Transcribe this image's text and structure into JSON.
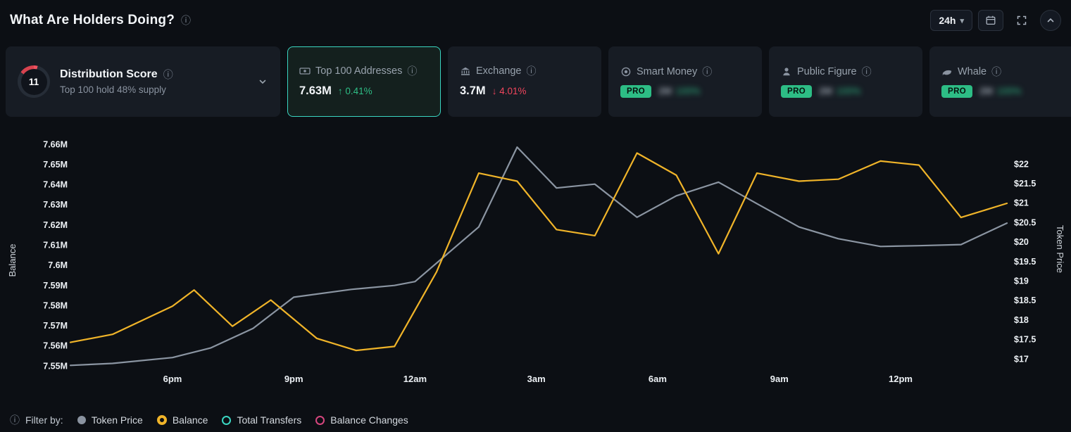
{
  "icons": {
    "info": "ⓘ",
    "caret_down": "▾",
    "up_arrow": "↑",
    "down_arrow": "↓"
  },
  "header": {
    "title": "What Are Holders Doing?",
    "timeframe_label": "24h"
  },
  "cards": [
    {
      "score": "11",
      "title": "Distribution Score",
      "subtitle": "Top 100 hold 48% supply"
    },
    {
      "title": "Top 100 Addresses",
      "value": "7.63M",
      "change": "0.41%",
      "direction": "up",
      "selected": true
    },
    {
      "title": "Exchange",
      "value": "3.7M",
      "change": "4.01%",
      "direction": "down"
    },
    {
      "title": "Smart Money",
      "badge": "PRO",
      "obscured_value": "2M",
      "obscured_change": "100%"
    },
    {
      "title": "Public Figure",
      "badge": "PRO",
      "obscured_value": "2M",
      "obscured_change": "100%"
    },
    {
      "title": "Whale",
      "badge": "PRO",
      "obscured_value": "2M",
      "obscured_change": "100%"
    }
  ],
  "footer": {
    "filter_label": "Filter by:",
    "legend": [
      {
        "label": "Token Price",
        "marker": "solid",
        "color": "#8a93a0",
        "active": true
      },
      {
        "label": "Balance",
        "marker": "donut",
        "color": "#f0b429",
        "active": true
      },
      {
        "label": "Total Transfers",
        "marker": "ring",
        "color": "#3ad6c2",
        "active": false
      },
      {
        "label": "Balance Changes",
        "marker": "ring",
        "color": "#d6467e",
        "active": false
      }
    ]
  },
  "chart_data": {
    "type": "line",
    "title": "",
    "x_ticks": [
      {
        "label": "6pm",
        "pos": 0.109
      },
      {
        "label": "9pm",
        "pos": 0.2385
      },
      {
        "label": "12am",
        "pos": 0.368
      },
      {
        "label": "3am",
        "pos": 0.4975
      },
      {
        "label": "6am",
        "pos": 0.627
      },
      {
        "label": "9am",
        "pos": 0.757
      },
      {
        "label": "12pm",
        "pos": 0.8865
      }
    ],
    "left_axis": {
      "label": "Balance",
      "min": 7.55,
      "max": 7.66,
      "step": 0.01,
      "suffix": "M"
    },
    "right_axis": {
      "label": "Token Price",
      "min": 17,
      "max": 22,
      "step": 0.5,
      "prefix": "$"
    },
    "grid": false,
    "legend_position": "bottom",
    "series": [
      {
        "name": "Token Price",
        "axis": "right",
        "color": "#8b95a2",
        "points": [
          [
            0.0,
            16.85
          ],
          [
            0.045,
            16.9
          ],
          [
            0.109,
            17.05
          ],
          [
            0.15,
            17.3
          ],
          [
            0.195,
            17.8
          ],
          [
            0.2385,
            18.6
          ],
          [
            0.3,
            18.8
          ],
          [
            0.346,
            18.9
          ],
          [
            0.368,
            19.0
          ],
          [
            0.436,
            20.4
          ],
          [
            0.477,
            22.45
          ],
          [
            0.519,
            21.4
          ],
          [
            0.56,
            21.5
          ],
          [
            0.605,
            20.65
          ],
          [
            0.647,
            21.2
          ],
          [
            0.692,
            21.55
          ],
          [
            0.733,
            21.0
          ],
          [
            0.778,
            20.4
          ],
          [
            0.82,
            20.1
          ],
          [
            0.865,
            19.9
          ],
          [
            0.906,
            19.92
          ],
          [
            0.951,
            19.95
          ],
          [
            1.0,
            20.5
          ]
        ]
      },
      {
        "name": "Balance",
        "axis": "left",
        "color": "#f0b429",
        "points": [
          [
            0.0,
            7.562
          ],
          [
            0.045,
            7.566
          ],
          [
            0.109,
            7.58
          ],
          [
            0.132,
            7.588
          ],
          [
            0.173,
            7.57
          ],
          [
            0.214,
            7.583
          ],
          [
            0.263,
            7.564
          ],
          [
            0.305,
            7.558
          ],
          [
            0.346,
            7.56
          ],
          [
            0.391,
            7.597
          ],
          [
            0.436,
            7.646
          ],
          [
            0.477,
            7.642
          ],
          [
            0.519,
            7.618
          ],
          [
            0.56,
            7.615
          ],
          [
            0.605,
            7.656
          ],
          [
            0.647,
            7.645
          ],
          [
            0.692,
            7.606
          ],
          [
            0.733,
            7.646
          ],
          [
            0.778,
            7.642
          ],
          [
            0.82,
            7.643
          ],
          [
            0.865,
            7.652
          ],
          [
            0.906,
            7.65
          ],
          [
            0.951,
            7.624
          ],
          [
            1.0,
            7.631
          ]
        ]
      }
    ]
  }
}
